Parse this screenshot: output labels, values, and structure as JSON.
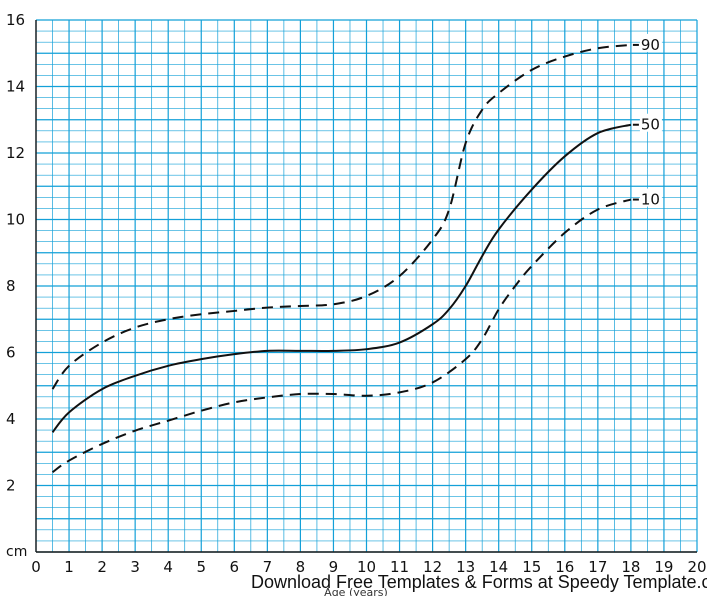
{
  "chart_data": {
    "type": "line",
    "xlabel": "Age (years)",
    "ylabel": "cm",
    "xlim": [
      0,
      20
    ],
    "ylim": [
      0,
      16
    ],
    "x_ticks": [
      0,
      1,
      2,
      3,
      4,
      5,
      6,
      7,
      8,
      9,
      10,
      11,
      12,
      13,
      14,
      15,
      16,
      17,
      18,
      19,
      20
    ],
    "y_ticks": [
      2,
      4,
      6,
      8,
      10,
      12,
      14,
      16
    ],
    "grid": true,
    "grid_color": "#13a0d8",
    "series": [
      {
        "name": "90",
        "style": "dashed",
        "x": [
          0.5,
          1,
          2,
          3,
          4,
          5,
          6,
          7,
          8,
          9,
          10,
          11,
          12,
          12.5,
          13,
          13.5,
          14,
          15,
          16,
          17,
          18
        ],
        "y": [
          4.9,
          5.6,
          6.3,
          6.75,
          7.0,
          7.15,
          7.25,
          7.35,
          7.4,
          7.45,
          7.7,
          8.3,
          9.4,
          10.3,
          12.3,
          13.3,
          13.8,
          14.5,
          14.9,
          15.15,
          15.25
        ]
      },
      {
        "name": "50",
        "style": "solid",
        "x": [
          0.5,
          1,
          2,
          3,
          4,
          5,
          6,
          7,
          8,
          9,
          10,
          11,
          12,
          12.5,
          13,
          13.5,
          14,
          15,
          16,
          17,
          18
        ],
        "y": [
          3.6,
          4.2,
          4.9,
          5.3,
          5.6,
          5.8,
          5.95,
          6.05,
          6.05,
          6.05,
          6.1,
          6.3,
          6.85,
          7.3,
          8.0,
          8.9,
          9.7,
          10.9,
          11.9,
          12.6,
          12.85
        ]
      },
      {
        "name": "10",
        "style": "dashed",
        "x": [
          0.5,
          1,
          2,
          3,
          4,
          5,
          6,
          7,
          8,
          9,
          10,
          11,
          12,
          13,
          13.5,
          14,
          14.5,
          15,
          16,
          17,
          18
        ],
        "y": [
          2.4,
          2.75,
          3.25,
          3.65,
          3.95,
          4.25,
          4.5,
          4.65,
          4.75,
          4.75,
          4.7,
          4.8,
          5.1,
          5.8,
          6.4,
          7.3,
          8.0,
          8.6,
          9.6,
          10.3,
          10.6
        ]
      }
    ]
  },
  "footer_text": "Download Free Templates & Forms at Speedy Template.com"
}
